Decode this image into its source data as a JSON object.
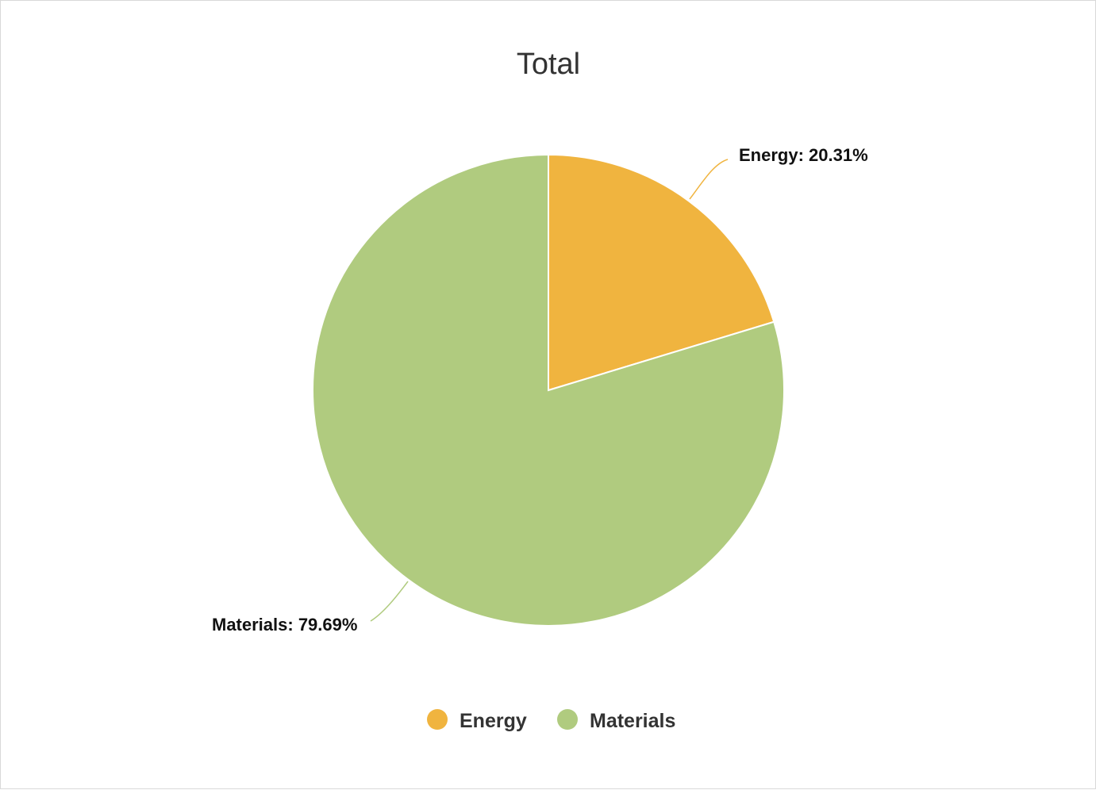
{
  "chart_data": {
    "type": "pie",
    "title": "Total",
    "slices": [
      {
        "name": "Energy",
        "value": 20.31,
        "label": "Energy: 20.31%",
        "color": "#f0b43f"
      },
      {
        "name": "Materials",
        "value": 79.69,
        "label": "Materials: 79.69%",
        "color": "#b0cb7f"
      }
    ],
    "legend": {
      "position": "bottom",
      "items": [
        {
          "name": "Energy",
          "color": "#f0b43f"
        },
        {
          "name": "Materials",
          "color": "#b0cb7f"
        }
      ]
    }
  }
}
